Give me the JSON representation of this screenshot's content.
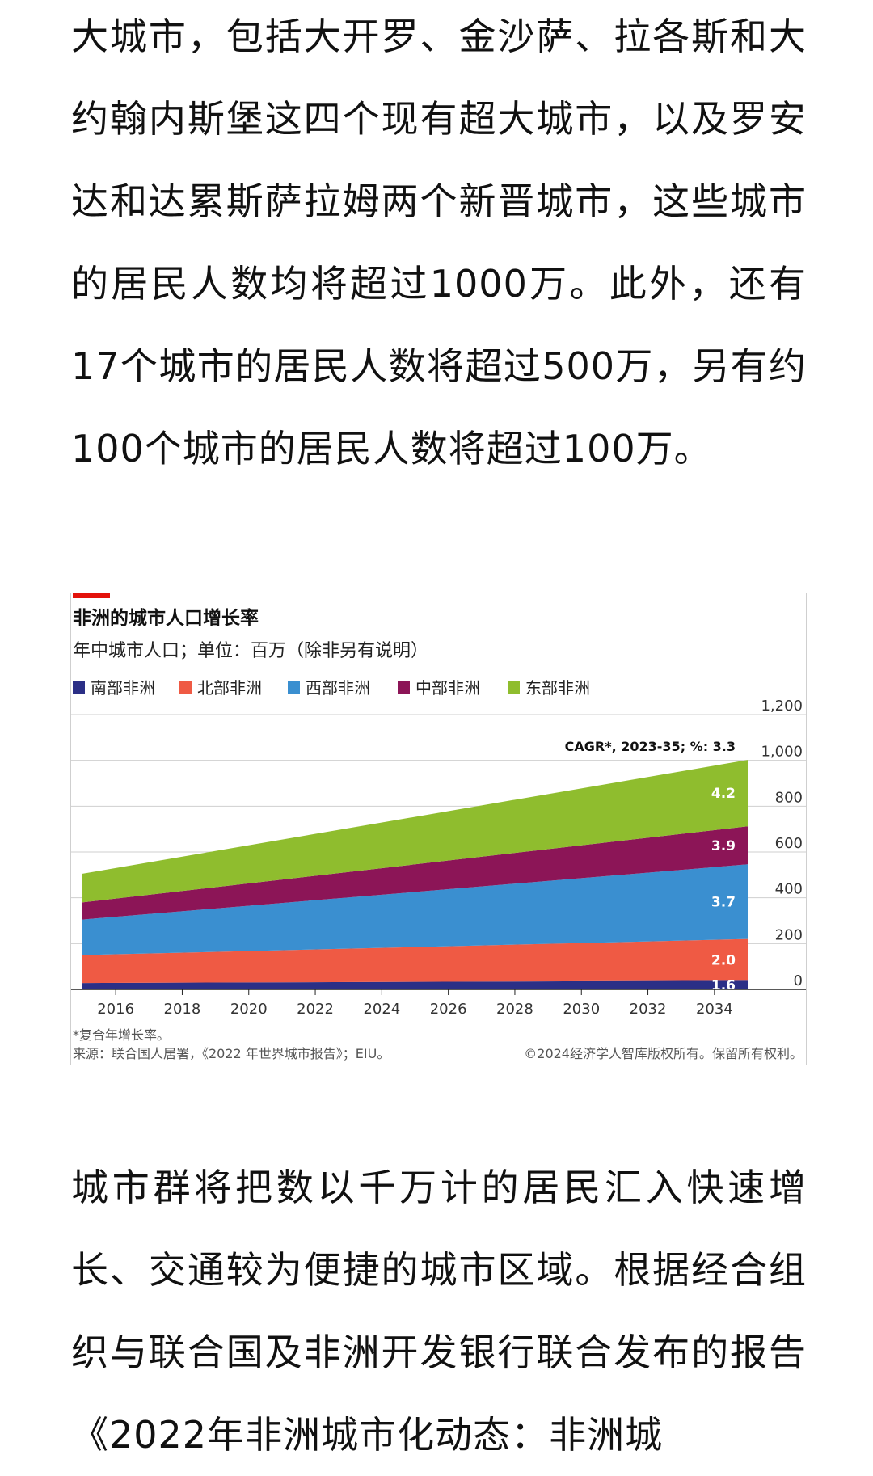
{
  "article": {
    "paragraph_top": "大城市，包括大开罗、金沙萨、拉各斯和大约翰内斯堡这四个现有超大城市，以及罗安达和达累斯萨拉姆两个新晋城市，这些城市的居民人数均将超过1000万。此外，还有17个城市的居民人数将超过500万，另有约100个城市的居民人数将超过100万。",
    "paragraph_bottom": "城市群将把数以千万计的居民汇入快速增长、交通较为便捷的城市区域。根据经合组织与联合国及非洲开发银行联合发布的报告《2022年非洲城市化动态：非洲城"
  },
  "chart": {
    "accent_color": "#e3120b",
    "footnote": "*复合年增长率。",
    "source": "来源：联合国人居署，《2022 年世界城市报告》；EIU。",
    "copyright": "©2024经济学人智库版权所有。保留所有权利。"
  },
  "chart_data": {
    "type": "area",
    "stacked": true,
    "title": "非洲的城市人口增长率",
    "subtitle": "年中城市人口；单位：百万（除非另有说明）",
    "annotation": "CAGR*, 2023-35; %: 3.3",
    "x": [
      2015,
      2035
    ],
    "x_ticks": [
      "2016",
      "2018",
      "2020",
      "2022",
      "2024",
      "2026",
      "2028",
      "2030",
      "2032",
      "2034"
    ],
    "y_ticks": [
      "0",
      "200",
      "400",
      "600",
      "800",
      "1,000",
      "1,200"
    ],
    "ylim": [
      0,
      1200
    ],
    "y_axis_side": "right",
    "legend_position": "top",
    "series": [
      {
        "name": "南部非洲",
        "color": "#2b2f86",
        "values": [
          28,
          38
        ],
        "cagr": "1.6"
      },
      {
        "name": "北部非洲",
        "color": "#ef5a44",
        "values": [
          122,
          182
        ],
        "cagr": "2.0"
      },
      {
        "name": "西部非洲",
        "color": "#3a8fd0",
        "values": [
          155,
          326
        ],
        "cagr": "3.7"
      },
      {
        "name": "中部非洲",
        "color": "#8c1557",
        "values": [
          75,
          166
        ],
        "cagr": "3.9"
      },
      {
        "name": "东部非洲",
        "color": "#8fbd2e",
        "values": [
          125,
          290
        ],
        "cagr": "4.2"
      }
    ]
  }
}
